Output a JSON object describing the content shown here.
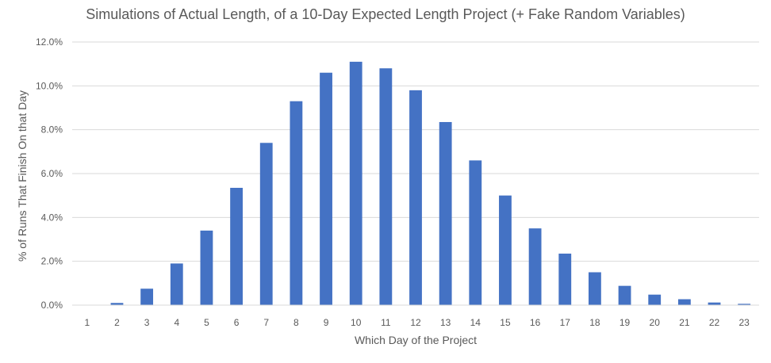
{
  "chart_data": {
    "type": "bar",
    "title": "Simulations of Actual Length, of a 10-Day Expected Length Project (+ Fake Random Variables)",
    "xlabel": "Which Day of the Project",
    "ylabel": "% of Runs That Finish On that Day",
    "categories": [
      "1",
      "2",
      "3",
      "4",
      "5",
      "6",
      "7",
      "8",
      "9",
      "10",
      "11",
      "12",
      "13",
      "14",
      "15",
      "16",
      "17",
      "18",
      "19",
      "20",
      "21",
      "22",
      "23"
    ],
    "values": [
      0.0,
      0.1,
      0.75,
      1.9,
      3.4,
      5.35,
      7.4,
      9.3,
      10.6,
      11.1,
      10.8,
      9.8,
      8.35,
      6.6,
      5.0,
      3.5,
      2.35,
      1.5,
      0.88,
      0.48,
      0.27,
      0.12,
      0.06
    ],
    "value_unit": "percent",
    "ylim": [
      0,
      12
    ],
    "yticks": [
      "0.0%",
      "2.0%",
      "4.0%",
      "6.0%",
      "8.0%",
      "10.0%",
      "12.0%"
    ],
    "grid": true,
    "legend": "none",
    "colors": {
      "bar": "#4472c4",
      "grid": "#d9d9d9",
      "text": "#595959"
    }
  }
}
